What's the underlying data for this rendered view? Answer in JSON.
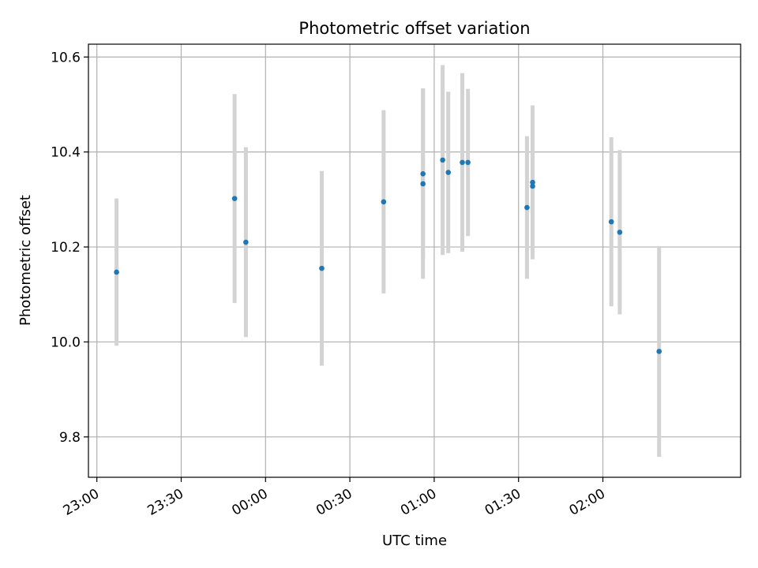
{
  "chart_data": {
    "type": "scatter",
    "title": "Photometric offset variation",
    "xlabel": "UTC time",
    "ylabel": "Photometric offset",
    "x_axis_type": "time",
    "xlim": [
      "22:57",
      "02:49"
    ],
    "ylim": [
      9.715,
      10.627
    ],
    "grid": true,
    "x_ticks": [
      "23:00",
      "23:30",
      "00:00",
      "00:30",
      "01:00",
      "01:30",
      "02:00"
    ],
    "y_ticks": [
      9.8,
      10.0,
      10.2,
      10.4,
      10.6
    ],
    "error_bar_color": "#d3d3d3",
    "marker_color": "#1f77b4",
    "points": [
      {
        "x": "23:07",
        "y": 10.147,
        "err": 0.155
      },
      {
        "x": "23:49",
        "y": 10.302,
        "err": 0.22
      },
      {
        "x": "23:53",
        "y": 10.21,
        "err": 0.2
      },
      {
        "x": "00:20",
        "y": 10.155,
        "err": 0.205
      },
      {
        "x": "00:42",
        "y": 10.295,
        "err": 0.193
      },
      {
        "x": "00:56",
        "y": 10.354,
        "err": 0.18
      },
      {
        "x": "00:56",
        "y": 10.333,
        "err": 0.2
      },
      {
        "x": "01:03",
        "y": 10.383,
        "err": 0.2
      },
      {
        "x": "01:05",
        "y": 10.357,
        "err": 0.17
      },
      {
        "x": "01:10",
        "y": 10.378,
        "err": 0.188
      },
      {
        "x": "01:12",
        "y": 10.378,
        "err": 0.155
      },
      {
        "x": "01:33",
        "y": 10.283,
        "err": 0.15
      },
      {
        "x": "01:35",
        "y": 10.336,
        "err": 0.162
      },
      {
        "x": "01:35",
        "y": 10.328,
        "err": 0.145
      },
      {
        "x": "02:03",
        "y": 10.253,
        "err": 0.178
      },
      {
        "x": "02:06",
        "y": 10.231,
        "err": 0.173
      },
      {
        "x": "02:20",
        "y": 9.98,
        "err": 0.222
      }
    ]
  }
}
